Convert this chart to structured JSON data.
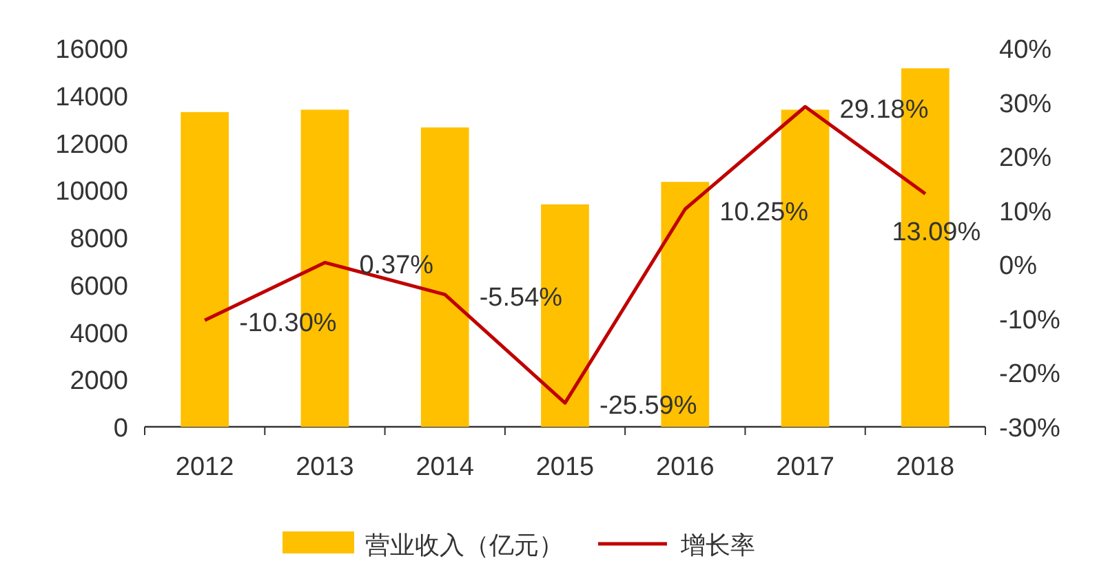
{
  "chart_data": {
    "type": "bar",
    "categories": [
      "2012",
      "2013",
      "2014",
      "2015",
      "2016",
      "2017",
      "2018"
    ],
    "series": [
      {
        "name": "营业收入（亿元）",
        "color": "#ffc000",
        "values": [
          13300,
          13400,
          12650,
          9400,
          10350,
          13400,
          15150
        ]
      },
      {
        "name": "增长率",
        "type": "line",
        "axis": "y2",
        "color": "#c00000",
        "values": [
          -10.3,
          0.37,
          -5.54,
          -25.59,
          10.25,
          29.18,
          13.09
        ],
        "value_labels": [
          "-10.30%",
          "0.37%",
          "-5.54%",
          "-25.59%",
          "10.25%",
          "29.18%",
          "13.09%"
        ]
      }
    ],
    "ylim": [
      0,
      16000
    ],
    "yticks": [
      0,
      2000,
      4000,
      6000,
      8000,
      10000,
      12000,
      14000,
      16000
    ],
    "y2lim": [
      -30,
      40
    ],
    "y2ticks": [
      {
        "value": -30,
        "label": "-30%"
      },
      {
        "value": -20,
        "label": "-20%"
      },
      {
        "value": -10,
        "label": "-10%"
      },
      {
        "value": 0,
        "label": "0%"
      },
      {
        "value": 10,
        "label": "10%"
      },
      {
        "value": 20,
        "label": "20%"
      },
      {
        "value": 30,
        "label": "30%"
      },
      {
        "value": 40,
        "label": "40%"
      }
    ],
    "grid": false,
    "legend": "bottom",
    "marker": "none",
    "line_style": "solid"
  }
}
